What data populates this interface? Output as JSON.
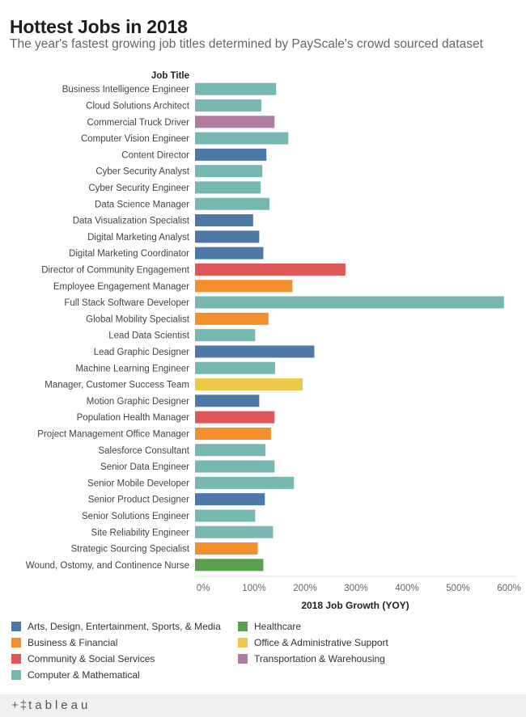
{
  "header": {
    "title": "Hottest Jobs in 2018",
    "subtitle": "The year's fastest growing job titles determined by PayScale's crowd sourced dataset"
  },
  "chart_data": {
    "type": "bar",
    "orientation": "horizontal",
    "category_header": "Job Title",
    "xlabel": "2018 Job Growth (YOY)",
    "xlim": [
      0,
      600
    ],
    "xticks": [
      "0%",
      "100%",
      "200%",
      "300%",
      "400%",
      "500%",
      "600%"
    ],
    "grid": false,
    "legend_position": "bottom",
    "categories": [
      "Business Intelligence Engineer",
      "Cloud Solutions Architect",
      "Commercial Truck Driver",
      "Computer Vision Engineer",
      "Content Director",
      "Cyber Security Analyst",
      "Cyber Security Engineer",
      "Data Science Manager",
      "Data Visualization Specialist",
      "Digital Marketing Analyst",
      "Digital Marketing Coordinator",
      "Director of Community Engagement",
      "Employee Engagement Manager",
      "Full Stack Software Developer",
      "Global Mobility Specialist",
      "Lead Data Scientist",
      "Lead Graphic Designer",
      "Machine Learning Engineer",
      "Manager, Customer Success Team",
      "Motion Graphic Designer",
      "Population Health Manager",
      "Project Management Office Manager",
      "Salesforce Consultant",
      "Senior Data Engineer",
      "Senior Mobile Developer",
      "Senior Product Designer",
      "Senior Solutions Engineer",
      "Site Reliability Engineer",
      "Strategic Sourcing Specialist",
      "Wound, Ostomy, and Continence Nurse"
    ],
    "values": [
      159,
      130,
      156,
      183,
      140,
      132,
      129,
      146,
      114,
      126,
      134,
      295,
      191,
      606,
      144,
      118,
      234,
      157,
      211,
      126,
      156,
      149,
      138,
      156,
      194,
      137,
      118,
      153,
      123,
      134
    ],
    "groups": [
      3,
      3,
      6,
      3,
      0,
      3,
      3,
      3,
      0,
      0,
      0,
      2,
      1,
      3,
      1,
      3,
      0,
      3,
      5,
      0,
      2,
      1,
      3,
      3,
      3,
      0,
      3,
      3,
      1,
      4
    ],
    "series": [
      {
        "name": "Arts, Design, Entertainment, Sports, & Media",
        "color": "#4e79a7"
      },
      {
        "name": "Business & Financial",
        "color": "#f28e2b"
      },
      {
        "name": "Community & Social Services",
        "color": "#e15759"
      },
      {
        "name": "Computer & Mathematical",
        "color": "#76b7b2"
      },
      {
        "name": "Healthcare",
        "color": "#59a14f"
      },
      {
        "name": "Office & Administrative Support",
        "color": "#edc948"
      },
      {
        "name": "Transportation & Warehousing",
        "color": "#b07aa1"
      }
    ]
  },
  "footer": {
    "brand": "tableau",
    "brand_icon": "tableau-plus-icon"
  }
}
